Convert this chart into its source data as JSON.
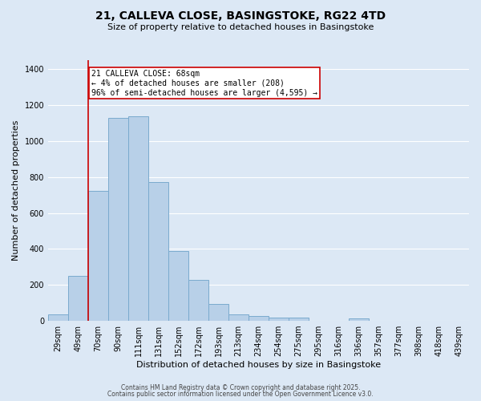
{
  "title_line1": "21, CALLEVA CLOSE, BASINGSTOKE, RG22 4TD",
  "title_line2": "Size of property relative to detached houses in Basingstoke",
  "xlabel": "Distribution of detached houses by size in Basingstoke",
  "ylabel": "Number of detached properties",
  "categories": [
    "29sqm",
    "49sqm",
    "70sqm",
    "90sqm",
    "111sqm",
    "131sqm",
    "152sqm",
    "172sqm",
    "193sqm",
    "213sqm",
    "234sqm",
    "254sqm",
    "275sqm",
    "295sqm",
    "316sqm",
    "336sqm",
    "357sqm",
    "377sqm",
    "398sqm",
    "418sqm",
    "439sqm"
  ],
  "values": [
    35,
    248,
    725,
    1130,
    1140,
    770,
    390,
    228,
    92,
    38,
    28,
    20,
    17,
    0,
    0,
    12,
    0,
    0,
    0,
    0,
    0
  ],
  "bar_color": "#b8d0e8",
  "bar_edge_color": "#7aaace",
  "annotation_text": "21 CALLEVA CLOSE: 68sqm\n← 4% of detached houses are smaller (208)\n96% of semi-detached houses are larger (4,595) →",
  "vline_index": 1.5,
  "vline_color": "#cc0000",
  "annotation_box_color": "#ffffff",
  "annotation_box_edge": "#cc0000",
  "ylim": [
    0,
    1450
  ],
  "yticks": [
    0,
    200,
    400,
    600,
    800,
    1000,
    1200,
    1400
  ],
  "footer_line1": "Contains HM Land Registry data © Crown copyright and database right 2025.",
  "footer_line2": "Contains public sector information licensed under the Open Government Licence v3.0.",
  "background_color": "#dce8f5",
  "plot_background": "#dce8f5",
  "grid_color": "#ffffff",
  "title_fontsize": 10,
  "subtitle_fontsize": 8,
  "xlabel_fontsize": 8,
  "ylabel_fontsize": 8,
  "tick_fontsize": 7,
  "annotation_fontsize": 7
}
